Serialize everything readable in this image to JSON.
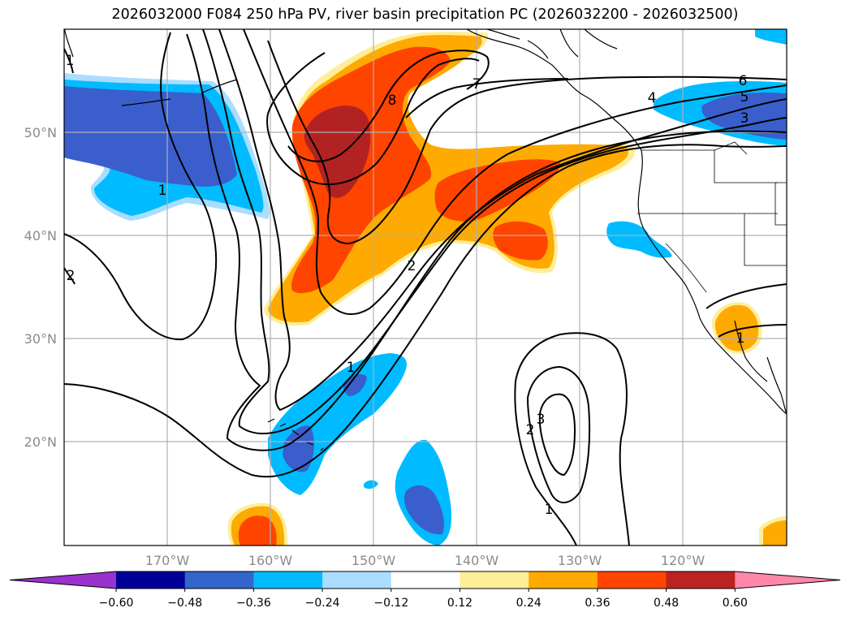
{
  "title": "2026032000 F084 250 hPa PV, river basin precipitation PC (2026032200 - 2026032500)",
  "axes": {
    "lat_labels": [
      "50°N",
      "40°N",
      "30°N",
      "20°N"
    ],
    "lon_labels": [
      "170°W",
      "160°W",
      "150°W",
      "140°W",
      "130°W",
      "120°W"
    ]
  },
  "contour_labels": [
    "1",
    "1",
    "1",
    "1",
    "1",
    "2",
    "2",
    "3",
    "3",
    "4",
    "5",
    "6",
    "7",
    "8",
    "2"
  ],
  "colorbar": {
    "tick_labels": [
      "−0.60",
      "−0.48",
      "−0.36",
      "−0.24",
      "−0.12",
      "0.12",
      "0.24",
      "0.36",
      "0.48",
      "0.60"
    ],
    "colors": [
      "#9933cc",
      "#000099",
      "#3366cc",
      "#00bbff",
      "#aaddff",
      "#ffffff",
      "#ffee99",
      "#ffaa00",
      "#ff4400",
      "#bb2222",
      "#ff88aa"
    ]
  },
  "fill_colors": {
    "light_blue": "#aaddff",
    "cyan": "#00bbff",
    "mid_blue": "#3a5fcd",
    "yellow": "#ffee99",
    "orange": "#ffaa00",
    "red_orange": "#ff4400",
    "dark_red": "#b22222"
  }
}
